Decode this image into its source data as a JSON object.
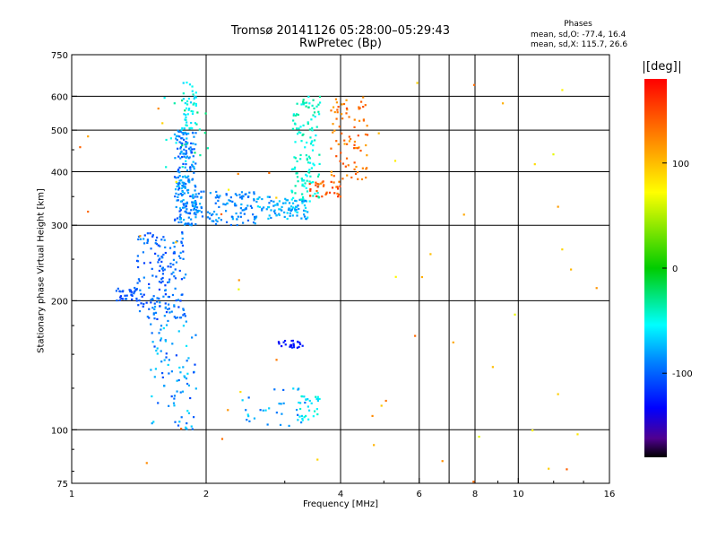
{
  "chart_data": {
    "type": "scatter",
    "title": "Tromsø 20141126 05:28:00–05:29:43",
    "subtitle": "RwPretec (Bp)",
    "xlabel": "Frequency [MHz]",
    "ylabel": "Stationary phase Virtual Height [km]",
    "x_scale": "log",
    "y_scale": "log",
    "xlim": [
      1,
      16
    ],
    "ylim": [
      75,
      750
    ],
    "x_ticks": [
      1,
      2,
      4,
      6,
      8,
      10,
      16
    ],
    "x_gridlines": [
      2,
      4,
      6,
      7,
      8,
      10
    ],
    "y_ticks": [
      75,
      100,
      200,
      300,
      400,
      500,
      600,
      750
    ],
    "y_gridlines": [
      100,
      200,
      300,
      400,
      500,
      600
    ],
    "grid": true,
    "stats": {
      "heading": "Phases",
      "o_line": "mean, sd,O: -77.4, 16.4",
      "x_line": "mean, sd,X: 115.7, 26.6"
    },
    "colorbar": {
      "unit": "[deg]",
      "ticks": [
        100,
        0,
        -100
      ],
      "tick_labels": [
        "100",
        "0",
        "-100"
      ],
      "range": [
        -180,
        180
      ],
      "colormap": "rainbow"
    },
    "clusters": [
      {
        "xr": [
          1.7,
          1.9
        ],
        "yr": [
          300,
          500
        ],
        "phase": [
          -110,
          -70
        ],
        "n": 220
      },
      {
        "xr": [
          1.75,
          1.9
        ],
        "yr": [
          500,
          650
        ],
        "phase": [
          -70,
          -40
        ],
        "n": 45
      },
      {
        "xr": [
          1.4,
          1.8
        ],
        "yr": [
          180,
          290
        ],
        "phase": [
          -115,
          -80
        ],
        "n": 170
      },
      {
        "xr": [
          1.25,
          1.4
        ],
        "yr": [
          200,
          215
        ],
        "phase": [
          -115,
          -95
        ],
        "n": 35
      },
      {
        "xr": [
          1.9,
          2.6
        ],
        "yr": [
          300,
          360
        ],
        "phase": [
          -100,
          -75
        ],
        "n": 110
      },
      {
        "xr": [
          2.6,
          3.4
        ],
        "yr": [
          310,
          350
        ],
        "phase": [
          -95,
          -60
        ],
        "n": 90
      },
      {
        "xr": [
          3.1,
          3.6
        ],
        "yr": [
          340,
          600
        ],
        "phase": [
          -60,
          -30
        ],
        "n": 130
      },
      {
        "xr": [
          3.4,
          4.0
        ],
        "yr": [
          350,
          380
        ],
        "phase": [
          120,
          160
        ],
        "n": 35
      },
      {
        "xr": [
          3.8,
          4.6
        ],
        "yr": [
          380,
          600
        ],
        "phase": [
          110,
          150
        ],
        "n": 80
      },
      {
        "xr": [
          1.5,
          1.9
        ],
        "yr": [
          100,
          180
        ],
        "phase": [
          -110,
          -60
        ],
        "n": 85
      },
      {
        "xr": [
          2.9,
          3.3
        ],
        "yr": [
          155,
          162
        ],
        "phase": [
          -140,
          -120
        ],
        "n": 25
      },
      {
        "xr": [
          3.2,
          3.6
        ],
        "yr": [
          105,
          120
        ],
        "phase": [
          -70,
          -40
        ],
        "n": 30
      },
      {
        "xr": [
          2.4,
          3.4
        ],
        "yr": [
          102,
          125
        ],
        "phase": [
          -100,
          -60
        ],
        "n": 30
      },
      {
        "xr": [
          1.6,
          2.1
        ],
        "yr": [
          400,
          600
        ],
        "phase": [
          -60,
          -20
        ],
        "n": 20
      },
      {
        "xr": [
          1.0,
          16.0
        ],
        "yr": [
          75,
          650
        ],
        "phase": [
          60,
          140
        ],
        "n": 55
      }
    ]
  }
}
